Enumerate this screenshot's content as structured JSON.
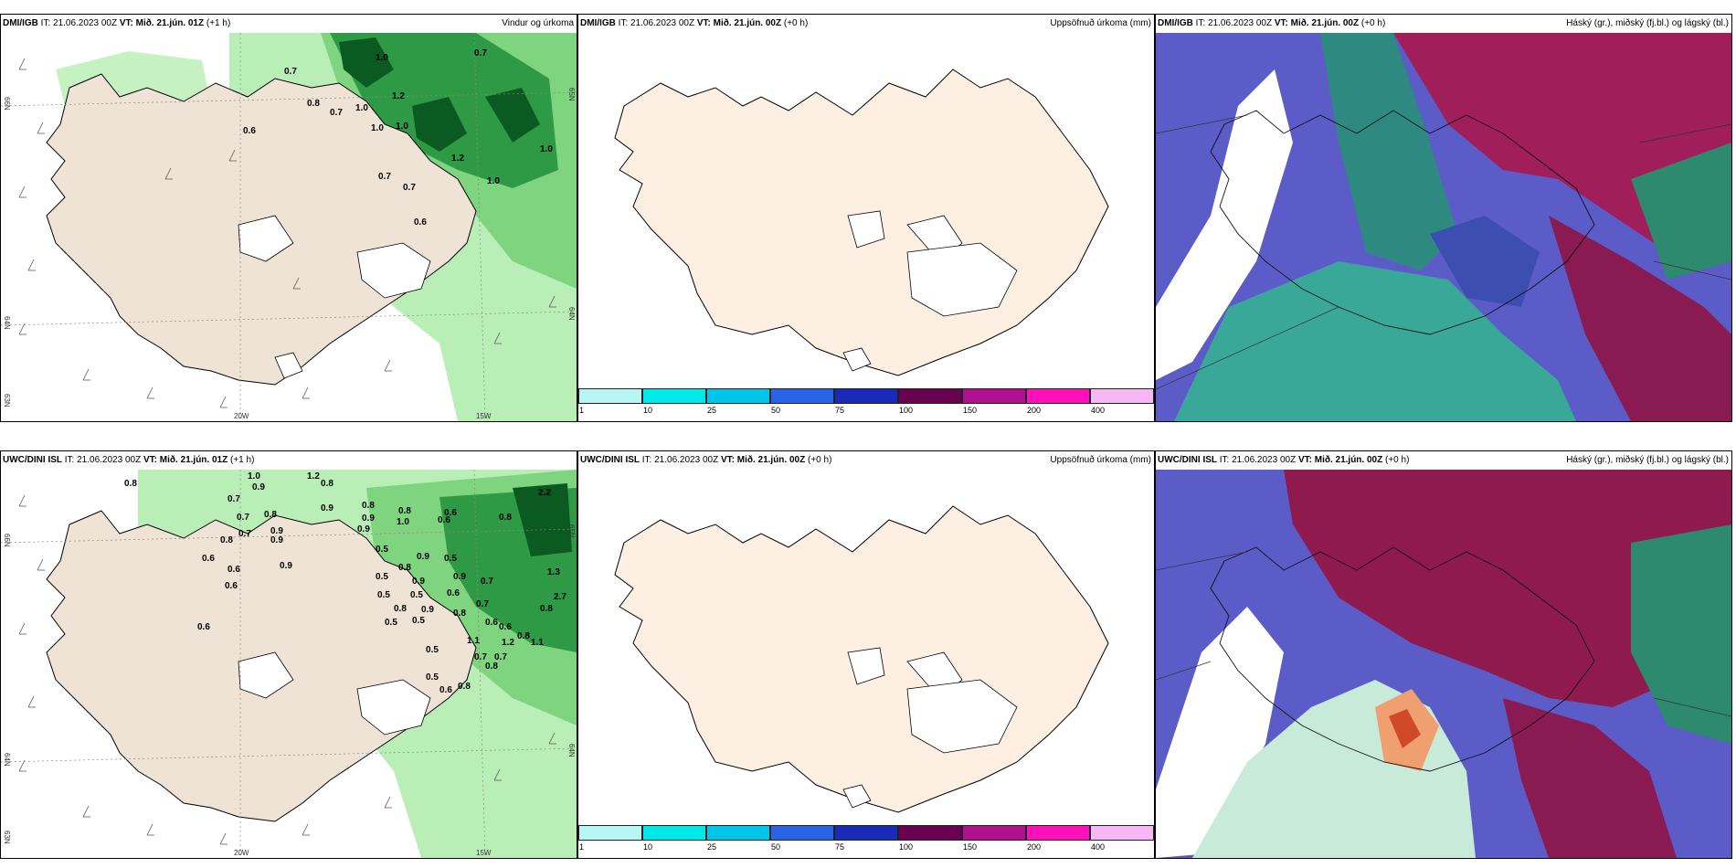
{
  "panels": [
    {
      "model": "DMI/IGB",
      "it": "IT: 21.06.2023 00Z",
      "vt": "VT: Mið. 21.jún. 01Z",
      "lead": "(+1 h)",
      "product": "Vindur og úrkoma"
    },
    {
      "model": "DMI/IGB",
      "it": "IT: 21.06.2023 00Z",
      "vt": "VT: Mið. 21.jún. 00Z",
      "lead": "(+0 h)",
      "product": "Uppsöfnuð úrkoma (mm)"
    },
    {
      "model": "DMI/IGB",
      "it": "IT: 21.06.2023 00Z",
      "vt": "VT: Mið. 21.jún. 00Z",
      "lead": "(+0 h)",
      "product": "Háský (gr.), miðský (fj.bl.) og lágský (bl.)"
    },
    {
      "model": "UWC/DINI ISL",
      "it": "IT: 21.06.2023 00Z",
      "vt": "VT: Mið. 21.jún. 01Z",
      "lead": "(+1 h)",
      "product": ""
    },
    {
      "model": "UWC/DINI ISL",
      "it": "IT: 21.06.2023 00Z",
      "vt": "VT: Mið. 21.jún. 00Z",
      "lead": "(+0 h)",
      "product": "Uppsöfnuð úrkoma (mm)"
    },
    {
      "model": "UWC/DINI ISL",
      "it": "IT: 21.06.2023 00Z",
      "vt": "VT: Mið. 21.jún. 00Z",
      "lead": "(+0 h)",
      "product": "Háský (gr.), miðský (fj.bl.) og lágský (bl.)"
    }
  ],
  "axis_labels": {
    "lon_20w": "20W",
    "lon_15w": "15W",
    "lat_66n": "66N",
    "lat_64n": "64N",
    "lat_65n": "65N",
    "lat_63n": "63N"
  },
  "colorbar": {
    "ticks": [
      "1",
      "10",
      "25",
      "50",
      "75",
      "100",
      "150",
      "200",
      "400"
    ],
    "colors": [
      "#b8f5f5",
      "#00e8e8",
      "#00c4e8",
      "#2a62e8",
      "#1a2ab8",
      "#6a0050",
      "#b0108e",
      "#ff10b8",
      "#f5b8f5"
    ]
  },
  "precip_labels_top": [
    {
      "v": "0.7"
    },
    {
      "v": "0.7"
    },
    {
      "v": "0.8"
    },
    {
      "v": "0.7"
    },
    {
      "v": "1.0"
    },
    {
      "v": "1.2"
    },
    {
      "v": "0.6"
    },
    {
      "v": "1.0"
    },
    {
      "v": "1.0"
    },
    {
      "v": "1.0"
    },
    {
      "v": "0.7"
    },
    {
      "v": "0.7"
    },
    {
      "v": "1.0"
    },
    {
      "v": "0.6"
    },
    {
      "v": "1.0"
    },
    {
      "v": "1.2"
    }
  ],
  "precip_labels_bottom": [
    {
      "v": "0.8"
    },
    {
      "v": "1.0"
    },
    {
      "v": "0.9"
    },
    {
      "v": "1.2"
    },
    {
      "v": "0.8"
    },
    {
      "v": "0.7"
    },
    {
      "v": "0.8"
    },
    {
      "v": "0.9"
    },
    {
      "v": "0.7"
    },
    {
      "v": "0.8"
    },
    {
      "v": "0.9"
    },
    {
      "v": "0.8"
    },
    {
      "v": "0.9"
    },
    {
      "v": "1.0"
    },
    {
      "v": "0.6"
    },
    {
      "v": "0.6"
    },
    {
      "v": "0.9"
    },
    {
      "v": "0.9"
    },
    {
      "v": "0.9"
    },
    {
      "v": "0.8"
    },
    {
      "v": "0.7"
    },
    {
      "v": "0.6"
    },
    {
      "v": "0.5"
    },
    {
      "v": "0.8"
    },
    {
      "v": "0.9"
    },
    {
      "v": "0.5"
    },
    {
      "v": "0.9"
    },
    {
      "v": "0.5"
    },
    {
      "v": "0.9"
    },
    {
      "v": "0.7"
    },
    {
      "v": "0.8"
    },
    {
      "v": "0.6"
    },
    {
      "v": "0.5"
    },
    {
      "v": "0.6"
    },
    {
      "v": "0.5"
    },
    {
      "v": "0.9"
    },
    {
      "v": "0.8"
    },
    {
      "v": "0.5"
    },
    {
      "v": "0.7"
    },
    {
      "v": "0.6"
    },
    {
      "v": "0.6"
    },
    {
      "v": "0.5"
    },
    {
      "v": "0.8"
    },
    {
      "v": "0.6"
    },
    {
      "v": "0.8"
    },
    {
      "v": "1.1"
    },
    {
      "v": "0.5"
    },
    {
      "v": "0.7"
    },
    {
      "v": "0.8"
    },
    {
      "v": "0.7"
    },
    {
      "v": "0.6"
    },
    {
      "v": "0.5"
    },
    {
      "v": "0.6"
    },
    {
      "v": "0.8"
    },
    {
      "v": "2.2"
    },
    {
      "v": "1.3"
    },
    {
      "v": "2.7"
    },
    {
      "v": "0.8"
    },
    {
      "v": "1.2"
    },
    {
      "v": "1.1"
    }
  ]
}
